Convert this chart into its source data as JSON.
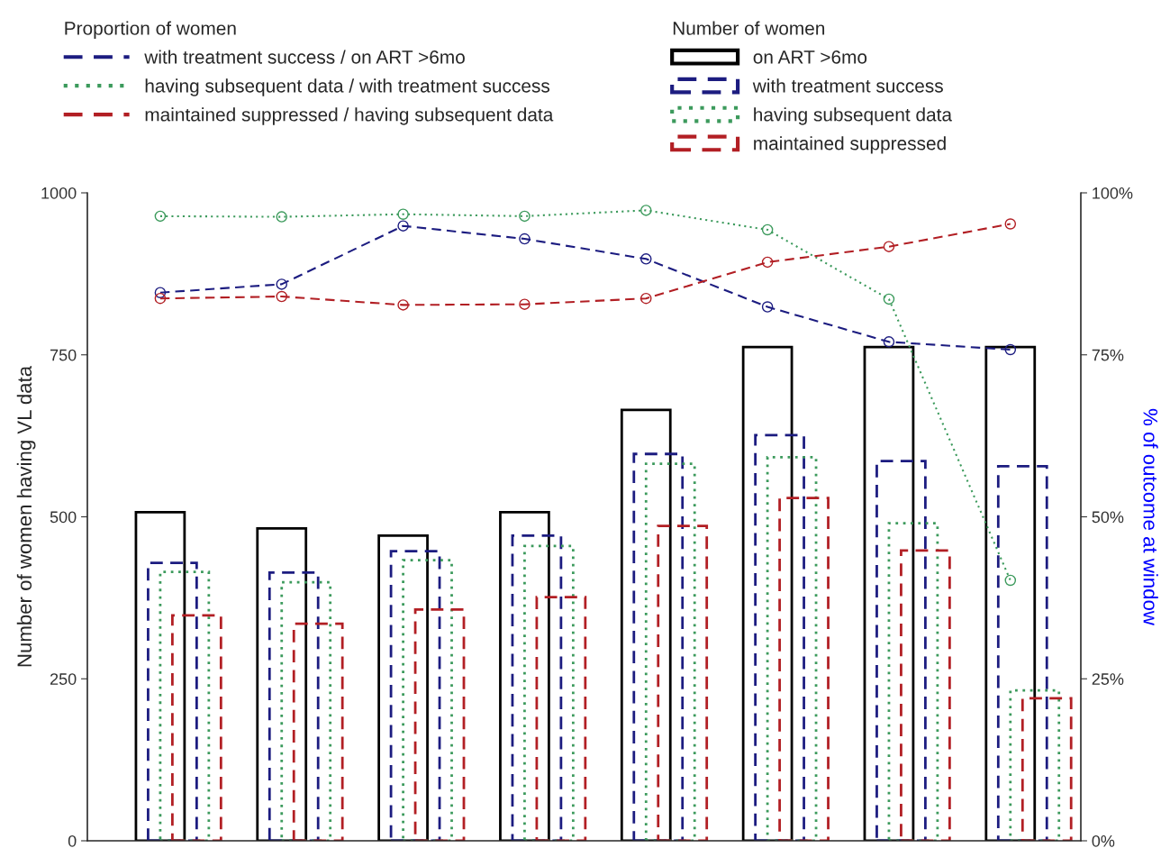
{
  "chart_data": {
    "type": "bar",
    "categories": [
      null,
      null,
      null,
      null,
      null,
      null,
      null,
      null
    ],
    "ylabel": "Number of women having VL data",
    "y2label": "% of outcome at window",
    "legend_title": "Proportion of women",
    "annotations": [
      "Number of women"
    ],
    "ylim": [
      0,
      1000
    ],
    "yticks": [
      0,
      250,
      500,
      750,
      1000
    ],
    "y2lim": [
      0,
      100
    ],
    "y2ticks": [
      {
        "value": 0,
        "label": "0%"
      },
      {
        "value": 25,
        "label": "25%"
      },
      {
        "value": 50,
        "label": "50%"
      },
      {
        "value": 75,
        "label": "75%"
      },
      {
        "value": 100,
        "label": "100%"
      }
    ],
    "grid": false,
    "legend": "top",
    "series": [
      {
        "name": "on ART >6mo",
        "color": "#000000",
        "line_style": "solid",
        "values": [
          507,
          482,
          471,
          507,
          665,
          762,
          762,
          762
        ]
      },
      {
        "name": "with treatment success",
        "color": "#1c1c80",
        "line_style": "dashed",
        "values": [
          429,
          414,
          447,
          471,
          597,
          626,
          586,
          578
        ]
      },
      {
        "name": "having subsequent data",
        "color": "#3c9a5c",
        "line_style": "dotted",
        "values": [
          415,
          399,
          433,
          455,
          582,
          592,
          490,
          232
        ]
      },
      {
        "name": "maintained suppressed",
        "color": "#b21f24",
        "line_style": "dashed",
        "values": [
          348,
          335,
          357,
          376,
          486,
          529,
          448,
          220
        ]
      },
      {
        "type": "line",
        "axis": "y2",
        "marker": "circle",
        "name": "with treatment success / on ART >6mo",
        "color": "#1c1c80",
        "line_style": "dashed",
        "values": [
          84.6,
          85.9,
          94.9,
          92.9,
          89.8,
          82.4,
          77.0,
          75.8
        ]
      },
      {
        "type": "line",
        "axis": "y2",
        "marker": "circle",
        "name": "having subsequent data / with treatment success",
        "color": "#3c9a5c",
        "line_style": "dotted",
        "values": [
          96.4,
          96.3,
          96.7,
          96.4,
          97.3,
          94.3,
          83.6,
          40.2
        ]
      },
      {
        "type": "line",
        "axis": "y2",
        "marker": "circle",
        "name": "maintained suppressed / having subsequent data",
        "color": "#b21f24",
        "line_style": "dashed",
        "values": [
          83.7,
          84.0,
          82.7,
          82.8,
          83.7,
          89.3,
          91.7,
          95.2
        ]
      }
    ]
  }
}
